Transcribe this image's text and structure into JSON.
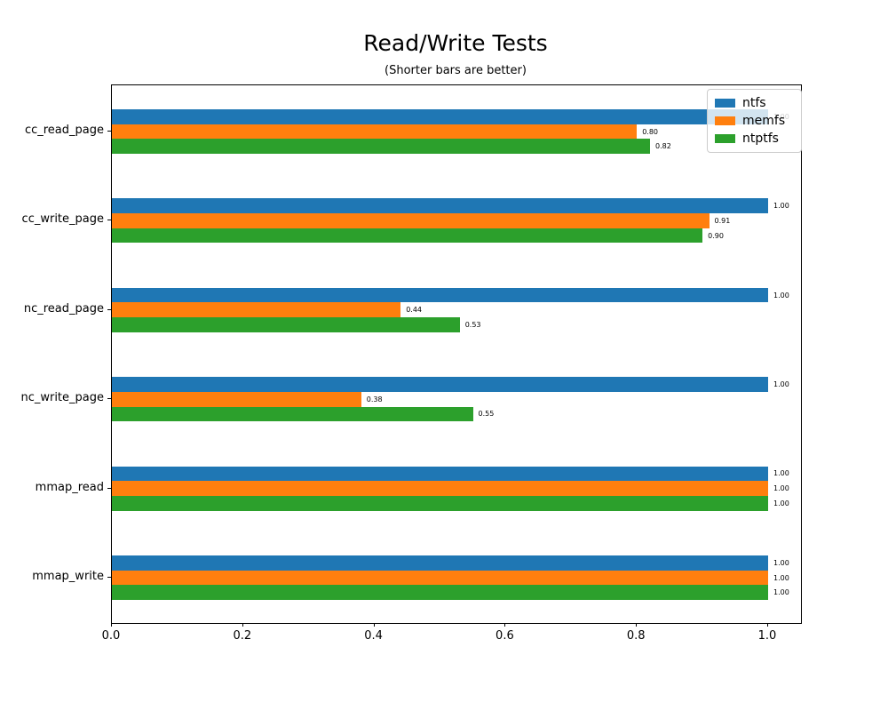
{
  "chart_data": {
    "type": "bar",
    "orientation": "horizontal",
    "title": "Read/Write Tests",
    "subtitle": "(Shorter bars are better)",
    "categories": [
      "cc_read_page",
      "cc_write_page",
      "nc_read_page",
      "nc_write_page",
      "mmap_read",
      "mmap_write"
    ],
    "series": [
      {
        "name": "ntfs",
        "color": "#1f77b4",
        "values": [
          1.0,
          1.0,
          1.0,
          1.0,
          1.0,
          1.0
        ]
      },
      {
        "name": "memfs",
        "color": "#ff7f0e",
        "values": [
          0.8,
          0.91,
          0.44,
          0.38,
          1.0,
          1.0
        ]
      },
      {
        "name": "ntptfs",
        "color": "#2ca02c",
        "values": [
          0.82,
          0.9,
          0.53,
          0.55,
          1.0,
          1.0
        ]
      }
    ],
    "value_labels": [
      [
        "1.00",
        "0.80",
        "0.82"
      ],
      [
        "1.00",
        "0.91",
        "0.90"
      ],
      [
        "1.00",
        "0.44",
        "0.53"
      ],
      [
        "1.00",
        "0.38",
        "0.55"
      ],
      [
        "1.00",
        "1.00",
        "1.00"
      ],
      [
        "1.00",
        "1.00",
        "1.00"
      ]
    ],
    "xlabel": "",
    "ylabel": "",
    "xlim": [
      0.0,
      1.05
    ],
    "xticks": [
      {
        "value": 0.0,
        "label": "0.0"
      },
      {
        "value": 0.2,
        "label": "0.2"
      },
      {
        "value": 0.4,
        "label": "0.4"
      },
      {
        "value": 0.6,
        "label": "0.6"
      },
      {
        "value": 0.8,
        "label": "0.8"
      },
      {
        "value": 1.0,
        "label": "1.0"
      }
    ],
    "grid": false,
    "legend_position": "upper right",
    "legend_entries": [
      "ntfs",
      "memfs",
      "ntptfs"
    ]
  }
}
